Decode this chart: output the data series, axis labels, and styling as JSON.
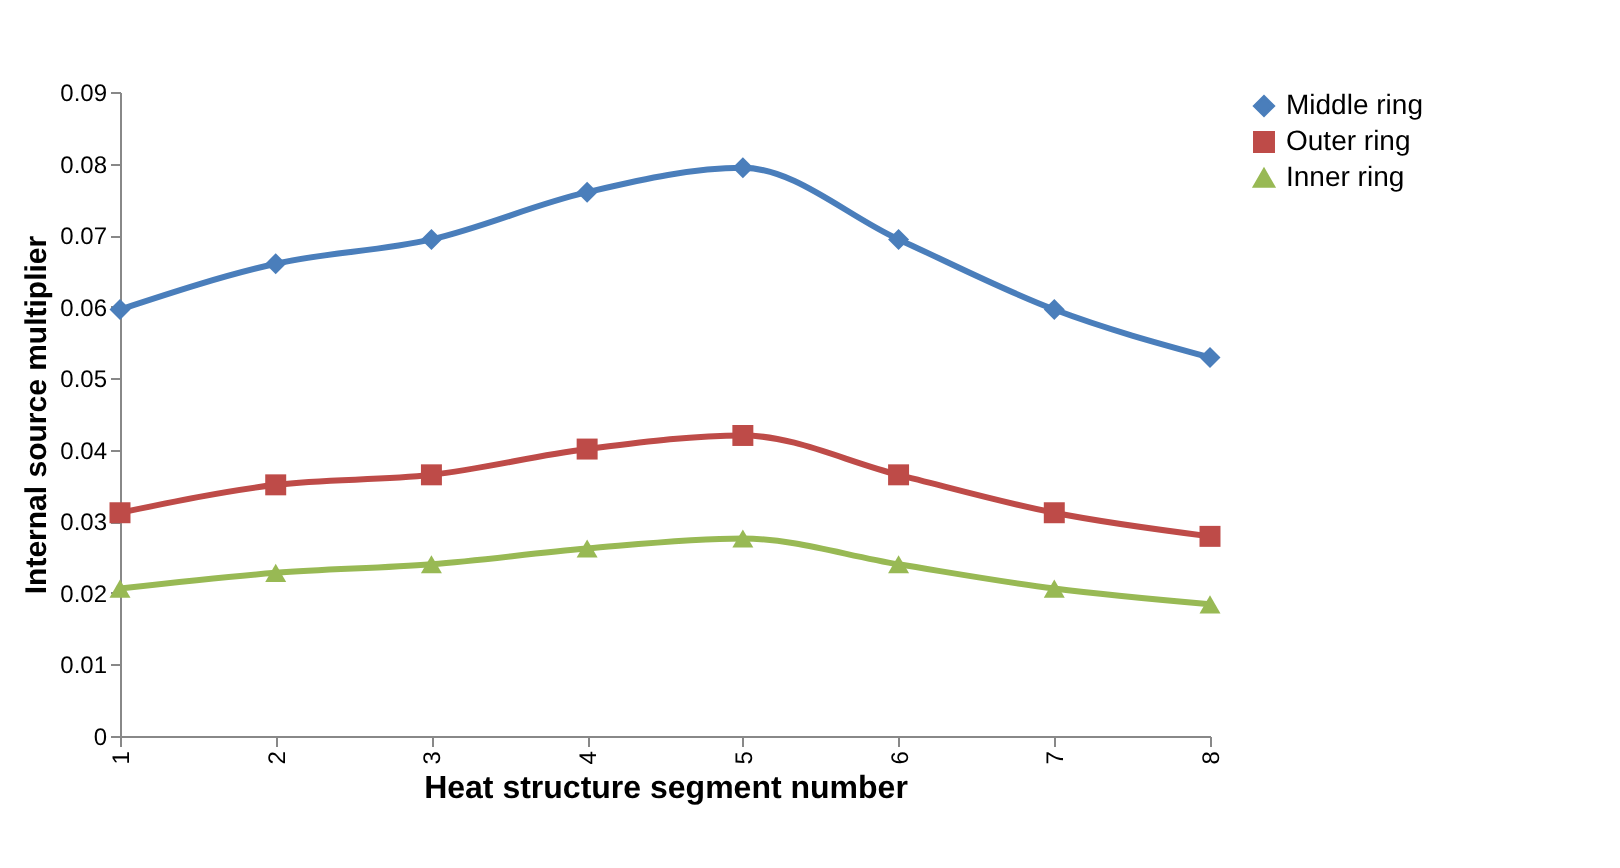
{
  "chart_data": {
    "type": "line",
    "xlabel": "Heat structure segment number",
    "ylabel": "Internal source multiplier",
    "categories": [
      "1",
      "2",
      "3",
      "4",
      "5",
      "6",
      "7",
      "8"
    ],
    "ylim": [
      0,
      0.09
    ],
    "yticks": [
      0,
      0.01,
      0.02,
      0.03,
      0.04,
      0.05,
      0.06,
      0.07,
      0.08,
      0.09
    ],
    "grid": false,
    "legend": "right",
    "line_style": "solid",
    "series": [
      {
        "name": "Middle ring",
        "color": "#4a7ebb",
        "marker": "diamond",
        "values": [
          0.0596,
          0.066,
          0.0694,
          0.076,
          0.0794,
          0.0694,
          0.0596,
          0.0529
        ]
      },
      {
        "name": "Outer ring",
        "color": "#be4b48",
        "marker": "square",
        "values": [
          0.0312,
          0.0351,
          0.0365,
          0.0401,
          0.042,
          0.0365,
          0.0312,
          0.0279
        ]
      },
      {
        "name": "Inner ring",
        "color": "#98b954",
        "marker": "triangle",
        "values": [
          0.0206,
          0.0228,
          0.024,
          0.0262,
          0.0276,
          0.024,
          0.0206,
          0.0184
        ]
      }
    ]
  }
}
